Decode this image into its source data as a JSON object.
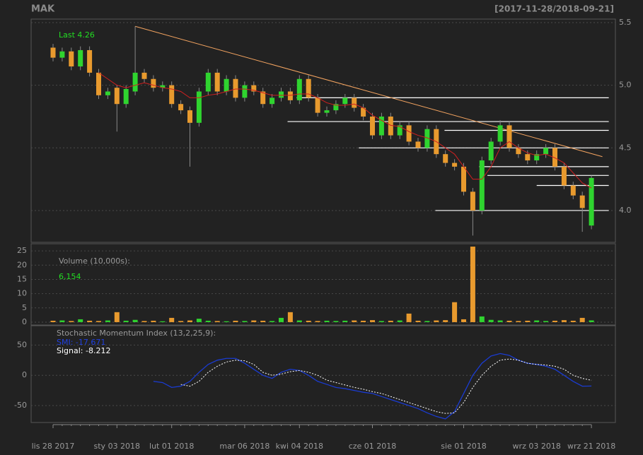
{
  "chart_data": {
    "type": "candlestick",
    "title": "MAK",
    "date_range": "[2017-11-28/2018-09-21]",
    "last_label": "Last 4.26",
    "categories": [
      "lis 28 2017",
      null,
      null,
      null,
      null,
      null,
      null,
      "sty 03 2018",
      null,
      null,
      null,
      null,
      null,
      "lut 01 2018",
      null,
      null,
      null,
      null,
      null,
      null,
      null,
      "mar 06 2018",
      null,
      null,
      null,
      null,
      null,
      "kwi 04 2018",
      null,
      null,
      null,
      null,
      null,
      null,
      null,
      "cze 01 2018",
      null,
      null,
      null,
      null,
      null,
      null,
      null,
      null,
      null,
      "sie 01 2018",
      null,
      null,
      null,
      null,
      null,
      null,
      null,
      "wrz 03 2018",
      null,
      null,
      null,
      null,
      null,
      "wrz 21 2018"
    ],
    "open": [
      5.3,
      5.22,
      5.27,
      5.15,
      5.28,
      5.1,
      4.92,
      4.98,
      4.85,
      4.95,
      5.1,
      5.05,
      4.98,
      5.0,
      4.85,
      4.8,
      4.7,
      4.95,
      5.1,
      4.95,
      5.05,
      4.9,
      5.0,
      4.95,
      4.85,
      4.9,
      4.95,
      4.88,
      5.05,
      4.9,
      4.78,
      4.8,
      4.85,
      4.9,
      4.82,
      4.75,
      4.6,
      4.75,
      4.6,
      4.68,
      4.55,
      4.5,
      4.65,
      4.45,
      4.38,
      4.35,
      4.15,
      4.0,
      4.4,
      4.55,
      4.68,
      4.5,
      4.45,
      4.4,
      4.45,
      4.5,
      4.35,
      4.2,
      4.12,
      3.88
    ],
    "high": [
      5.33,
      5.3,
      5.3,
      5.31,
      5.31,
      5.13,
      4.98,
      5.0,
      5.0,
      5.47,
      5.13,
      5.08,
      5.03,
      5.03,
      4.88,
      4.83,
      4.98,
      5.13,
      5.13,
      5.08,
      5.08,
      5.03,
      5.03,
      4.98,
      4.93,
      4.98,
      4.98,
      5.08,
      5.08,
      4.93,
      4.83,
      4.88,
      4.93,
      4.93,
      4.85,
      4.78,
      4.78,
      4.78,
      4.71,
      4.71,
      4.58,
      4.68,
      4.68,
      4.48,
      4.41,
      4.38,
      4.18,
      4.43,
      4.58,
      4.72,
      4.71,
      4.53,
      4.48,
      4.48,
      4.53,
      4.53,
      4.38,
      4.23,
      4.15,
      4.28
    ],
    "low": [
      5.19,
      5.19,
      5.12,
      5.12,
      5.07,
      4.89,
      4.89,
      4.63,
      4.82,
      4.92,
      5.02,
      4.95,
      4.95,
      4.82,
      4.77,
      4.35,
      4.67,
      4.92,
      4.92,
      4.92,
      4.87,
      4.87,
      4.92,
      4.82,
      4.82,
      4.87,
      4.85,
      4.85,
      4.87,
      4.75,
      4.75,
      4.77,
      4.82,
      4.79,
      4.72,
      4.57,
      4.57,
      4.57,
      4.57,
      4.52,
      4.47,
      4.47,
      4.42,
      4.35,
      4.32,
      4.12,
      3.8,
      3.97,
      4.37,
      4.52,
      4.47,
      4.42,
      4.37,
      4.37,
      4.42,
      4.32,
      4.17,
      4.09,
      3.83,
      3.85
    ],
    "close": [
      5.22,
      5.27,
      5.15,
      5.28,
      5.1,
      4.92,
      4.95,
      4.85,
      4.97,
      5.1,
      5.05,
      4.98,
      5.0,
      4.85,
      4.8,
      4.7,
      4.95,
      5.1,
      4.95,
      5.05,
      4.9,
      5.0,
      4.95,
      4.85,
      4.9,
      4.95,
      4.88,
      5.05,
      4.9,
      4.78,
      4.8,
      4.85,
      4.9,
      4.82,
      4.75,
      4.6,
      4.75,
      4.6,
      4.68,
      4.55,
      4.5,
      4.65,
      4.45,
      4.38,
      4.35,
      4.15,
      4.0,
      4.4,
      4.55,
      4.68,
      4.5,
      4.45,
      4.4,
      4.45,
      4.5,
      4.35,
      4.2,
      4.12,
      4.02,
      4.26
    ],
    "up_color": "#2fd42f",
    "down_color": "#e89a2e",
    "ylim": [
      3.746,
      5.528
    ],
    "yticks": [
      {
        "value": 4,
        "label": "4.0"
      },
      {
        "value": 4.5,
        "label": "4.5"
      },
      {
        "value": 5,
        "label": "5.0"
      },
      {
        "value": 5.5,
        "label": "5.5"
      }
    ],
    "grid": true,
    "ma": {
      "color": "#d02020",
      "values": [
        null,
        null,
        null,
        null,
        null,
        5.1,
        5.05,
        5.0,
        4.98,
        5.0,
        5.02,
        5.0,
        4.98,
        4.97,
        4.95,
        4.9,
        4.9,
        4.92,
        4.93,
        4.95,
        4.97,
        4.97,
        4.96,
        4.94,
        4.92,
        4.92,
        4.92,
        4.93,
        4.93,
        4.9,
        4.86,
        4.84,
        4.84,
        4.85,
        4.82,
        4.76,
        4.72,
        4.68,
        4.67,
        4.63,
        4.6,
        4.58,
        4.55,
        4.5,
        4.45,
        4.35,
        4.25,
        4.25,
        4.35,
        4.5,
        4.55,
        4.5,
        4.46,
        4.44,
        4.45,
        4.42,
        4.38,
        4.3,
        4.22,
        4.18
      ]
    },
    "trendline": {
      "color": "#f4a460",
      "x0": 9,
      "y0": 5.47,
      "x1": 60.2,
      "y1": 4.43
    },
    "hlines": {
      "color": "#ffffff",
      "lines": [
        {
          "start": 26.7,
          "end": 60.9,
          "value": 4.9
        },
        {
          "start": 25.7,
          "end": 60.9,
          "value": 4.71
        },
        {
          "start": 42.9,
          "end": 60.9,
          "value": 4.64
        },
        {
          "start": 33.5,
          "end": 60.9,
          "value": 4.5
        },
        {
          "start": 46.7,
          "end": 60.9,
          "value": 4.35
        },
        {
          "start": 47.6,
          "end": 60.9,
          "value": 4.28
        },
        {
          "start": 53,
          "end": 60.9,
          "value": 4.2
        },
        {
          "start": 41.9,
          "end": 60.9,
          "value": 4.0
        }
      ]
    },
    "volume": {
      "label": "Volume (10,000s):",
      "value_label": "6,154",
      "values": [
        0.5,
        0.6,
        0.4,
        1.0,
        0.5,
        0.4,
        0.6,
        3.5,
        0.5,
        0.8,
        0.4,
        0.5,
        0.3,
        1.5,
        0.4,
        0.6,
        1.2,
        0.5,
        0.4,
        0.3,
        0.5,
        0.4,
        0.6,
        0.5,
        0.4,
        1.5,
        3.5,
        0.6,
        0.5,
        0.4,
        0.5,
        0.4,
        0.5,
        0.6,
        0.5,
        0.7,
        0.4,
        0.5,
        0.6,
        3.0,
        0.5,
        0.4,
        0.6,
        0.7,
        7.0,
        1.0,
        26.5,
        2.0,
        0.8,
        0.6,
        0.5,
        0.4,
        0.5,
        0.6,
        0.4,
        0.5,
        0.7,
        0.5,
        1.5,
        0.6154
      ],
      "ylim": [
        -1,
        27.5
      ],
      "yticks": [
        0,
        5,
        10,
        15,
        20,
        25
      ]
    },
    "smi": {
      "label": "Stochastic Momentum Index (13,2,25,9):",
      "smi_label": "SMI: -17.671",
      "signal_label": "Signal: -8.212",
      "ylim": [
        -78,
        82
      ],
      "yticks": [
        -50,
        0,
        50
      ],
      "series": [
        {
          "color": "#1a3bd1",
          "values": [
            null,
            null,
            null,
            null,
            null,
            null,
            null,
            null,
            null,
            null,
            null,
            -10,
            -12,
            -20,
            -18,
            -10,
            5,
            18,
            25,
            28,
            28,
            20,
            10,
            0,
            -5,
            5,
            10,
            8,
            0,
            -10,
            -15,
            -20,
            -22,
            -25,
            -28,
            -30,
            -35,
            -40,
            -45,
            -50,
            -55,
            -62,
            -68,
            -72,
            -60,
            -30,
            0,
            20,
            32,
            36,
            33,
            25,
            20,
            18,
            15,
            10,
            0,
            -10,
            -18,
            -17.671
          ]
        },
        {
          "color": "#ffffff",
          "values": [
            null,
            null,
            null,
            null,
            null,
            null,
            null,
            null,
            null,
            null,
            null,
            null,
            null,
            null,
            -15,
            -18,
            -10,
            5,
            15,
            22,
            25,
            24,
            18,
            5,
            0,
            2,
            6,
            8,
            5,
            0,
            -8,
            -12,
            -16,
            -20,
            -23,
            -27,
            -30,
            -35,
            -40,
            -45,
            -50,
            -55,
            -60,
            -63,
            -62,
            -45,
            -20,
            0,
            15,
            25,
            27,
            25,
            20,
            18,
            17,
            15,
            10,
            0,
            -5,
            -8.212
          ]
        }
      ]
    }
  }
}
